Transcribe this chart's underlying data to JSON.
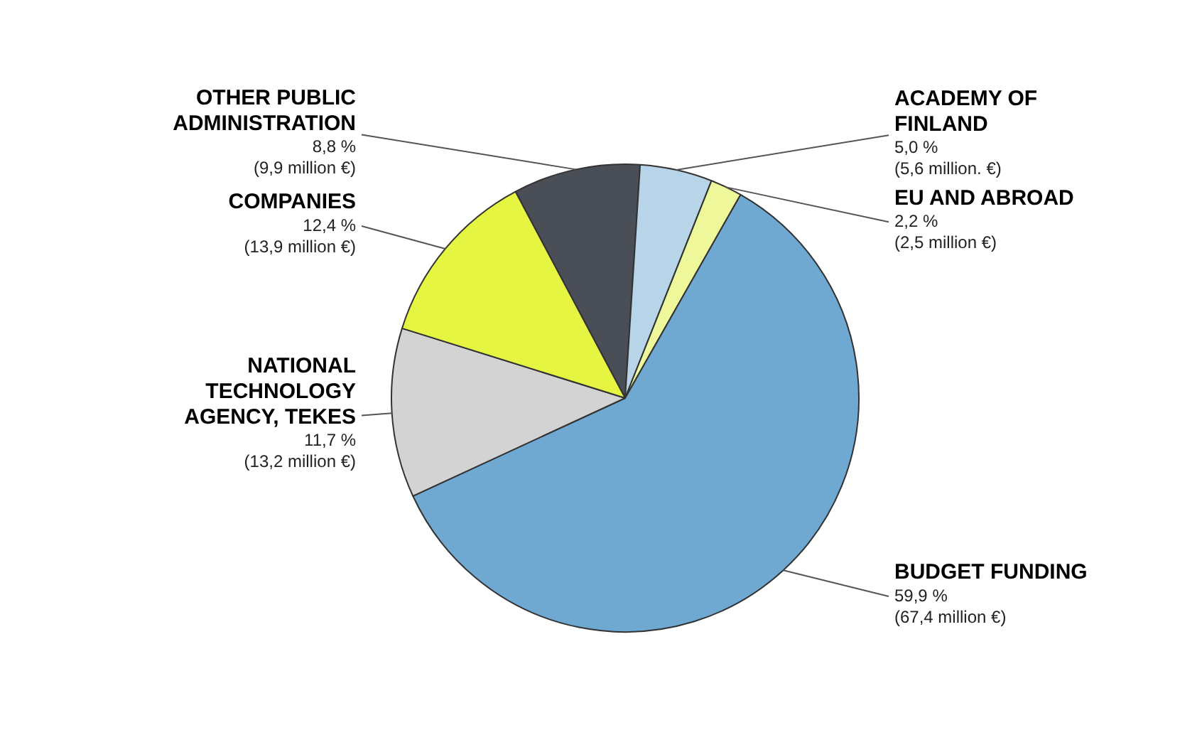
{
  "chart_data": {
    "type": "pie",
    "categories": [
      "OTHER PUBLIC ADMINISTRATION",
      "ACADEMY OF FINLAND",
      "EU AND ABROAD",
      "BUDGET FUNDING",
      "NATIONAL TECHNOLOGY AGENCY, TEKES",
      "COMPANIES"
    ],
    "values": [
      8.8,
      5.0,
      2.2,
      59.9,
      11.7,
      12.4
    ],
    "colors": [
      "#4a4e57",
      "#b8d4e8",
      "#eef79a",
      "#6fa8d0",
      "#d3d3d3",
      "#e6f542"
    ],
    "value_labels": [
      "8,8 %\n(9,9 million €)",
      "5,0 %\n(5,6 million. €)",
      "2,2 %\n(2,5 million €)",
      "59,9 %\n(67,4 million €)",
      "11,7 %\n(13,2 million €)",
      "12,4 %\n(13,9 million €)"
    ]
  }
}
